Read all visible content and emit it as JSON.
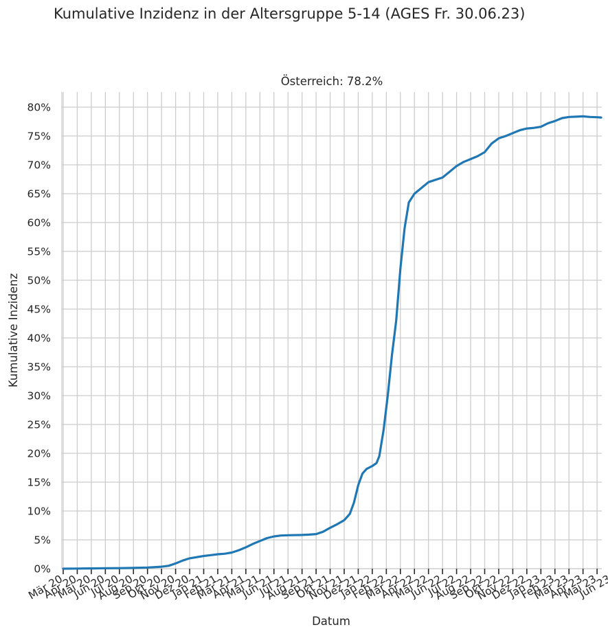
{
  "suptitle": "Kumulative Inzidenz in der Altersgruppe 5-14 (AGES Fr. 30.06.23)",
  "chart_data": {
    "type": "line",
    "title": "Österreich: 78.2%",
    "xlabel": "Datum",
    "ylabel": "Kumulative Inzidenz",
    "ylim": [
      0,
      82
    ],
    "xlim": [
      0,
      40
    ],
    "grid": true,
    "y_ticks": [
      0,
      5,
      10,
      15,
      20,
      25,
      30,
      35,
      40,
      45,
      50,
      55,
      60,
      65,
      70,
      75,
      80
    ],
    "y_tick_labels": [
      "0%",
      "5%",
      "10%",
      "15%",
      "20%",
      "25%",
      "30%",
      "35%",
      "40%",
      "45%",
      "50%",
      "55%",
      "60%",
      "65%",
      "70%",
      "75%",
      "80%"
    ],
    "x_tick_labels": [
      "Mär 20",
      "Apr 20",
      "Mai 20",
      "Jun 20",
      "Jul 20",
      "Aug 20",
      "Sep 20",
      "Okt 20",
      "Nov 20",
      "Dez 20",
      "Jan 21",
      "Feb 21",
      "Mär 21",
      "Apr 21",
      "Mai 21",
      "Jun 21",
      "Jul 21",
      "Aug 21",
      "Sep 21",
      "Okt 21",
      "Nov 21",
      "Dez 21",
      "Jan 22",
      "Feb 22",
      "Mär 22",
      "Apr 22",
      "Mai 22",
      "Jun 22",
      "Jul 22",
      "Aug 22",
      "Sep 22",
      "Okt 22",
      "Nov 22",
      "Dez 22",
      "Jan 23",
      "Feb 23",
      "Mär 23",
      "Apr 23",
      "Mai 23",
      "Jun 23"
    ],
    "series": [
      {
        "name": "Österreich",
        "color": "#1f77b4",
        "points": [
          [
            0,
            0
          ],
          [
            1,
            0.02
          ],
          [
            2,
            0.05
          ],
          [
            3,
            0.08
          ],
          [
            4,
            0.1
          ],
          [
            5,
            0.13
          ],
          [
            6,
            0.2
          ],
          [
            7,
            0.35
          ],
          [
            7.5,
            0.5
          ],
          [
            8,
            0.9
          ],
          [
            8.5,
            1.4
          ],
          [
            9,
            1.8
          ],
          [
            9.5,
            2.0
          ],
          [
            10,
            2.2
          ],
          [
            10.5,
            2.35
          ],
          [
            11,
            2.5
          ],
          [
            11.5,
            2.6
          ],
          [
            12,
            2.8
          ],
          [
            12.5,
            3.2
          ],
          [
            13,
            3.7
          ],
          [
            13.5,
            4.3
          ],
          [
            14,
            4.8
          ],
          [
            14.5,
            5.3
          ],
          [
            15,
            5.6
          ],
          [
            15.5,
            5.75
          ],
          [
            16,
            5.8
          ],
          [
            17,
            5.85
          ],
          [
            17.5,
            5.9
          ],
          [
            18,
            6.0
          ],
          [
            18.5,
            6.4
          ],
          [
            19,
            7.1
          ],
          [
            19.5,
            7.7
          ],
          [
            20,
            8.4
          ],
          [
            20.4,
            9.5
          ],
          [
            20.7,
            11.5
          ],
          [
            21,
            14.5
          ],
          [
            21.3,
            16.5
          ],
          [
            21.6,
            17.3
          ],
          [
            22,
            17.8
          ],
          [
            22.3,
            18.3
          ],
          [
            22.5,
            19.5
          ],
          [
            22.8,
            24.0
          ],
          [
            23.1,
            30.0
          ],
          [
            23.4,
            37.0
          ],
          [
            23.7,
            43.0
          ],
          [
            24,
            52.0
          ],
          [
            24.3,
            59.0
          ],
          [
            24.6,
            63.5
          ],
          [
            25,
            65.0
          ],
          [
            25.5,
            66.0
          ],
          [
            26,
            67.0
          ],
          [
            26.5,
            67.4
          ],
          [
            27,
            67.8
          ],
          [
            27.5,
            68.8
          ],
          [
            28,
            69.8
          ],
          [
            28.5,
            70.5
          ],
          [
            29,
            71.0
          ],
          [
            29.5,
            71.5
          ],
          [
            30,
            72.2
          ],
          [
            30.5,
            73.7
          ],
          [
            31,
            74.6
          ],
          [
            31.5,
            75.0
          ],
          [
            32,
            75.5
          ],
          [
            32.5,
            76.0
          ],
          [
            33,
            76.3
          ],
          [
            33.5,
            76.4
          ],
          [
            34,
            76.6
          ],
          [
            34.5,
            77.2
          ],
          [
            35,
            77.6
          ],
          [
            35.5,
            78.1
          ],
          [
            36,
            78.3
          ],
          [
            36.5,
            78.35
          ],
          [
            37,
            78.4
          ],
          [
            37.5,
            78.3
          ],
          [
            38,
            78.25
          ],
          [
            39,
            78.2
          ],
          [
            40,
            78.2
          ]
        ]
      }
    ]
  }
}
